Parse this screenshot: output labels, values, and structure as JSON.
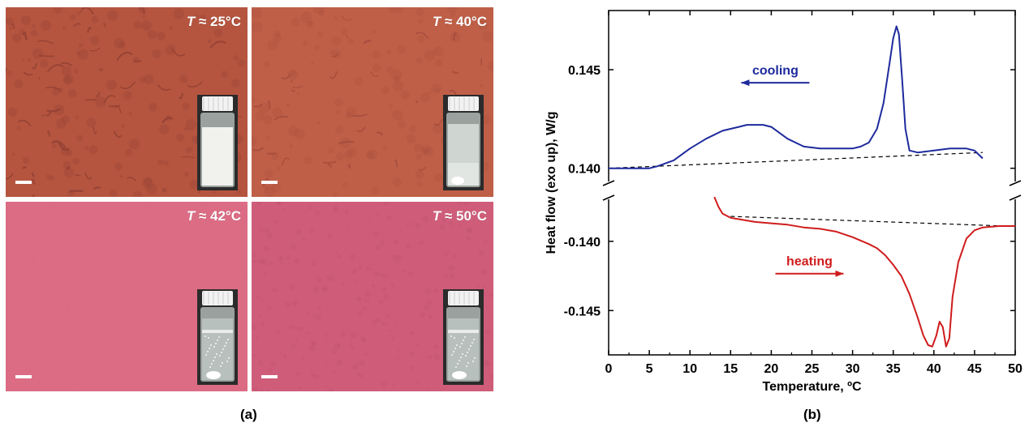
{
  "micrographs": [
    {
      "label_T": "T",
      "label_rest": " ≈ 25°C",
      "bg": "#b5553f",
      "tex": "#8f3e33",
      "vial_fill": "#f1f1ee",
      "state": "opaque"
    },
    {
      "label_T": "T",
      "label_rest": " ≈ 40°C",
      "bg": "#bf5f47",
      "tex": "#a24a3c",
      "vial_fill": "#e2e6e3",
      "state": "partial"
    },
    {
      "label_T": "T",
      "label_rest": " ≈ 42°C",
      "bg": "#dc6c84",
      "tex": "#d96882",
      "vial_fill": "#f4f6f4",
      "state": "clear"
    },
    {
      "label_T": "T",
      "label_rest": " ≈ 50°C",
      "bg": "#cf5d7a",
      "tex": "#c05370",
      "vial_fill": "#f4f6f4",
      "state": "clear"
    }
  ],
  "caption_a": "(a)",
  "caption_b": "(b)",
  "chart_data": {
    "type": "line",
    "xlabel": "Temperature, ºC",
    "ylabel": "Heat flow (exo up), W/g",
    "xlim": [
      0,
      50
    ],
    "xticks": [
      "0",
      "5",
      "10",
      "15",
      "20",
      "25",
      "30",
      "35",
      "40",
      "45",
      "50"
    ],
    "axis_break": true,
    "upper_yticks": [
      "0.140",
      "0.145"
    ],
    "lower_yticks": [
      "-0.140",
      "-0.145"
    ],
    "upper_ylim": [
      0.139,
      0.148
    ],
    "lower_ylim": [
      -0.1482,
      -0.1365
    ],
    "series": [
      {
        "name": "cooling",
        "color": "#1e2a9c",
        "panel": "upper",
        "x": [
          0,
          2,
          4,
          5,
          6,
          8,
          10,
          12,
          14,
          16,
          17,
          18,
          19,
          20,
          22,
          24,
          26,
          28,
          30,
          31,
          32,
          33,
          33.8,
          34.5,
          35,
          35.4,
          35.7,
          36.1,
          36.5,
          37,
          38,
          40,
          42,
          44,
          45,
          45.5,
          46
        ],
        "y": [
          0.14,
          0.14,
          0.14,
          0.14,
          0.1401,
          0.1404,
          0.141,
          0.1415,
          0.1419,
          0.1421,
          0.1422,
          0.1422,
          0.1422,
          0.1421,
          0.1415,
          0.1411,
          0.141,
          0.141,
          0.141,
          0.1411,
          0.1413,
          0.142,
          0.1433,
          0.1452,
          0.1466,
          0.1472,
          0.1468,
          0.1445,
          0.142,
          0.1409,
          0.1408,
          0.1409,
          0.141,
          0.141,
          0.1409,
          0.1407,
          0.1405
        ]
      },
      {
        "name": "heating",
        "color": "#d01c1c",
        "panel": "lower",
        "x": [
          13,
          13.5,
          14,
          15,
          16,
          18,
          20,
          22,
          24,
          26,
          28,
          30,
          32,
          33,
          34,
          35,
          36,
          37,
          38,
          38.7,
          39.3,
          39.8,
          40.3,
          40.7,
          41.1,
          41.5,
          41.9,
          42.3,
          43,
          44,
          45,
          46,
          48,
          50
        ],
        "y": [
          -0.1368,
          -0.1375,
          -0.138,
          -0.1383,
          -0.1384,
          -0.1386,
          -0.1387,
          -0.1388,
          -0.139,
          -0.1391,
          -0.1393,
          -0.1397,
          -0.1402,
          -0.1405,
          -0.141,
          -0.1417,
          -0.1425,
          -0.1438,
          -0.1455,
          -0.1468,
          -0.1475,
          -0.1476,
          -0.1468,
          -0.1458,
          -0.1462,
          -0.1476,
          -0.147,
          -0.144,
          -0.1415,
          -0.1398,
          -0.1392,
          -0.139,
          -0.1389,
          -0.1389
        ]
      }
    ],
    "baselines": [
      {
        "panel": "upper",
        "x": [
          0,
          46
        ],
        "y": [
          0.14,
          0.1408
        ]
      },
      {
        "panel": "lower",
        "x": [
          15,
          49
        ],
        "y": [
          -0.1382,
          -0.1389
        ]
      }
    ],
    "annotations": [
      {
        "text": "cooling",
        "color": "#1e2a9c",
        "arrow": "left",
        "x": 20.5,
        "y": 0.1445,
        "panel": "upper"
      },
      {
        "text": "heating",
        "color": "#d01c1c",
        "arrow": "right",
        "x": 24.7,
        "y": -0.1421,
        "panel": "lower"
      }
    ]
  }
}
